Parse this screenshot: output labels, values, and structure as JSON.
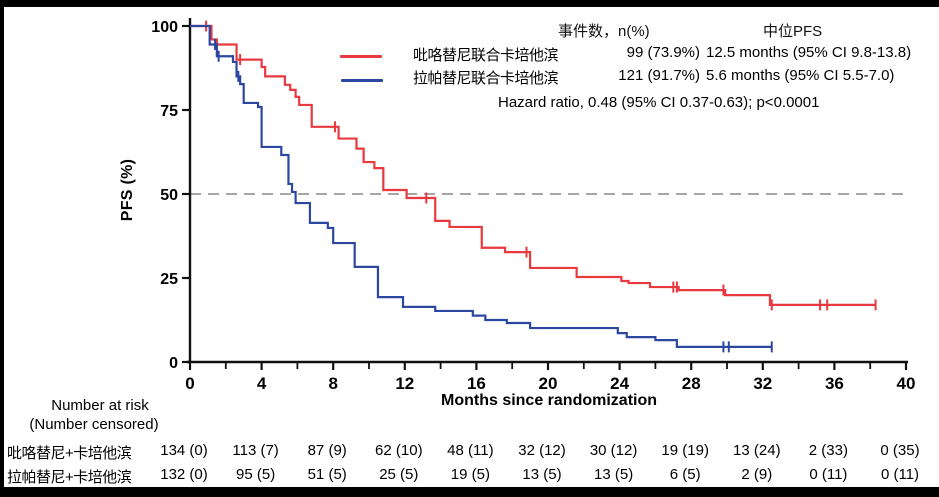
{
  "legend": {
    "col_events": "事件数，n(%)",
    "col_median": "中位PFS",
    "hazard": "Hazard ratio, 0.48 (95% CI 0.37-0.63); p<0.0001"
  },
  "risk_table": {
    "header_line1": "Number at risk",
    "header_line2": "(Number censored)",
    "months": [
      0,
      4,
      8,
      12,
      16,
      20,
      24,
      28,
      32,
      36,
      40
    ],
    "rows": [
      {
        "label": "吡咯替尼+卡培他滨",
        "values": [
          "134 (0)",
          "113 (7)",
          "87 (9)",
          "62 (10)",
          "48 (11)",
          "32 (12)",
          "30 (12)",
          "19 (19)",
          "13 (24)",
          "2 (33)",
          "0 (35)"
        ]
      },
      {
        "label": "拉帕替尼+卡培他滨",
        "values": [
          "132 (0)",
          "95 (5)",
          "51 (5)",
          "25 (5)",
          "19 (5)",
          "13 (5)",
          "13 (5)",
          "6 (5)",
          "2 (9)",
          "0 (11)",
          "0 (11)"
        ]
      }
    ]
  },
  "chart_data": {
    "type": "line",
    "subtype": "kaplan-meier-step",
    "title": "",
    "xlabel": "Months since randomization",
    "ylabel": "PFS (%)",
    "xlim": [
      0,
      40
    ],
    "ylim": [
      0,
      100
    ],
    "xticks": [
      0,
      4,
      8,
      12,
      16,
      20,
      24,
      28,
      32,
      36,
      40
    ],
    "xticks_minor": [
      2,
      6,
      10,
      14,
      18,
      22,
      26,
      30,
      34,
      38
    ],
    "yticks": [
      0,
      25,
      50,
      75,
      100
    ],
    "grid": false,
    "ref_line_y": 50,
    "ref_line_color": "#9a9a9a",
    "axis_color": "#111111",
    "legend_position": "top-center",
    "series": [
      {
        "name": "吡咯替尼联合卡培他滨",
        "color": "#e8393f",
        "events_n_pct": "99 (73.9%)",
        "median_pfs": "12.5 months (95% CI 9.8-13.8)",
        "steps": [
          [
            0,
            100
          ],
          [
            1.2,
            96
          ],
          [
            1.5,
            94.5
          ],
          [
            2.6,
            90
          ],
          [
            4.0,
            87.8
          ],
          [
            4.2,
            85
          ],
          [
            5.3,
            82.5
          ],
          [
            5.6,
            81
          ],
          [
            5.9,
            78.9
          ],
          [
            6.1,
            76.5
          ],
          [
            6.8,
            70
          ],
          [
            8.3,
            66.5
          ],
          [
            9.3,
            63.5
          ],
          [
            9.7,
            59.5
          ],
          [
            10.3,
            57.7
          ],
          [
            10.8,
            51.2
          ],
          [
            12.1,
            48.8
          ],
          [
            13.7,
            42
          ],
          [
            14.5,
            40.2
          ],
          [
            16.3,
            34
          ],
          [
            17.6,
            32.7
          ],
          [
            19.0,
            28
          ],
          [
            21.6,
            25.3
          ],
          [
            24.1,
            24.1
          ],
          [
            24.5,
            23.5
          ],
          [
            25.7,
            22.3
          ],
          [
            27.3,
            21.4
          ],
          [
            29.9,
            19.9
          ],
          [
            32.4,
            17
          ]
        ],
        "end_month": 38.3,
        "censors": [
          [
            0.9,
            100
          ],
          [
            2.8,
            90
          ],
          [
            8.1,
            70
          ],
          [
            13.2,
            48.8
          ],
          [
            18.8,
            32.7
          ],
          [
            27.0,
            22.3
          ],
          [
            27.2,
            22.3
          ],
          [
            29.8,
            21.4
          ],
          [
            32.5,
            17
          ],
          [
            35.2,
            17
          ],
          [
            35.6,
            17
          ],
          [
            38.3,
            17
          ]
        ]
      },
      {
        "name": "拉帕替尼联合卡培他滨",
        "color": "#2b47a0",
        "events_n_pct": "121 (91.7%)",
        "median_pfs": "5.6 months (95% CI 5.5-7.0)",
        "steps": [
          [
            0,
            100
          ],
          [
            1.1,
            94.5
          ],
          [
            1.5,
            91
          ],
          [
            2.4,
            89.3
          ],
          [
            2.6,
            85
          ],
          [
            2.8,
            82.7
          ],
          [
            3.0,
            77.1
          ],
          [
            3.8,
            75.9
          ],
          [
            4.0,
            64
          ],
          [
            5.1,
            61.6
          ],
          [
            5.5,
            53
          ],
          [
            5.7,
            50.6
          ],
          [
            5.9,
            47.3
          ],
          [
            6.7,
            41.4
          ],
          [
            7.7,
            39.9
          ],
          [
            8.0,
            35.4
          ],
          [
            9.2,
            28.3
          ],
          [
            10.5,
            19.3
          ],
          [
            11.9,
            16.4
          ],
          [
            13.7,
            15.2
          ],
          [
            15.8,
            13.8
          ],
          [
            16.5,
            12.5
          ],
          [
            17.7,
            11.6
          ],
          [
            19.0,
            10.1
          ],
          [
            23.9,
            8.6
          ],
          [
            24.4,
            7.4
          ],
          [
            26.0,
            6.5
          ],
          [
            27.2,
            4.5
          ]
        ],
        "end_month": 32.5,
        "censors": [
          [
            1.4,
            94.5
          ],
          [
            1.6,
            91
          ],
          [
            2.7,
            85
          ],
          [
            29.8,
            4.5
          ],
          [
            30.1,
            4.5
          ],
          [
            32.5,
            4.5
          ]
        ]
      }
    ]
  }
}
